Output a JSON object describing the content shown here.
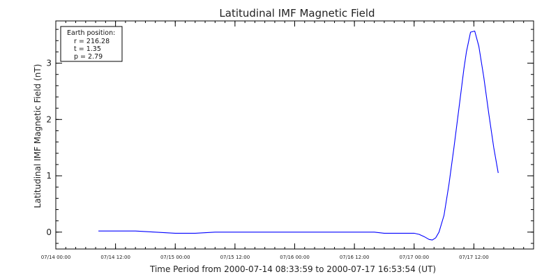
{
  "chart_data": {
    "type": "line",
    "title": "Latitudinal IMF Magnetic Field",
    "xlabel": "Time Period from 2000-07-14 08:33:59 to 2000-07-17 16:53:54 (UT)",
    "ylabel": "Latitudinal IMF Magnetic Field (nT)",
    "x_unit": "time (UT)",
    "xlim": [
      "2000-07-14 00:00",
      "2000-07-18 00:00"
    ],
    "ylim": [
      -0.3,
      3.75
    ],
    "x_ticks": [
      {
        "t": "2000-07-14 00:00",
        "label": "07/14 00:00"
      },
      {
        "t": "2000-07-14 12:00",
        "label": "07/14 12:00"
      },
      {
        "t": "2000-07-15 00:00",
        "label": "07/15 00:00"
      },
      {
        "t": "2000-07-15 12:00",
        "label": "07/15 12:00"
      },
      {
        "t": "2000-07-16 00:00",
        "label": "07/16 00:00"
      },
      {
        "t": "2000-07-16 12:00",
        "label": "07/16 12:00"
      },
      {
        "t": "2000-07-17 00:00",
        "label": "07/17 00:00"
      },
      {
        "t": "2000-07-17 12:00",
        "label": "07/17 12:00"
      }
    ],
    "y_ticks": [
      {
        "v": 0,
        "label": "0"
      },
      {
        "v": 1,
        "label": "1"
      },
      {
        "v": 2,
        "label": "2"
      },
      {
        "v": 3,
        "label": "3"
      }
    ],
    "grid": false,
    "legend": {
      "placement": "top-left",
      "lines": [
        "Earth position:",
        "r = 216.28",
        "t = 1.35",
        "p = 2.79"
      ]
    },
    "series": [
      {
        "color": "#0000ff",
        "points": [
          [
            "2000-07-14 08:34",
            0.02
          ],
          [
            "2000-07-14 12:00",
            0.02
          ],
          [
            "2000-07-14 16:00",
            0.02
          ],
          [
            "2000-07-14 20:00",
            0.0
          ],
          [
            "2000-07-15 00:00",
            -0.02
          ],
          [
            "2000-07-15 04:00",
            -0.02
          ],
          [
            "2000-07-15 08:00",
            0.0
          ],
          [
            "2000-07-15 12:00",
            0.0
          ],
          [
            "2000-07-15 18:00",
            0.0
          ],
          [
            "2000-07-16 00:00",
            0.0
          ],
          [
            "2000-07-16 06:00",
            0.0
          ],
          [
            "2000-07-16 12:00",
            0.0
          ],
          [
            "2000-07-16 16:00",
            0.0
          ],
          [
            "2000-07-16 18:00",
            -0.02
          ],
          [
            "2000-07-17 00:00",
            -0.02
          ],
          [
            "2000-07-17 01:00",
            -0.04
          ],
          [
            "2000-07-17 02:00",
            -0.08
          ],
          [
            "2000-07-17 03:00",
            -0.13
          ],
          [
            "2000-07-17 03:40",
            -0.14
          ],
          [
            "2000-07-17 04:20",
            -0.1
          ],
          [
            "2000-07-17 05:00",
            0.0
          ],
          [
            "2000-07-17 06:00",
            0.3
          ],
          [
            "2000-07-17 07:00",
            0.85
          ],
          [
            "2000-07-17 08:00",
            1.5
          ],
          [
            "2000-07-17 09:00",
            2.2
          ],
          [
            "2000-07-17 10:00",
            2.9
          ],
          [
            "2000-07-17 10:30",
            3.2
          ],
          [
            "2000-07-17 11:20",
            3.55
          ],
          [
            "2000-07-17 12:10",
            3.57
          ],
          [
            "2000-07-17 13:00",
            3.3
          ],
          [
            "2000-07-17 14:00",
            2.75
          ],
          [
            "2000-07-17 15:00",
            2.1
          ],
          [
            "2000-07-17 16:00",
            1.5
          ],
          [
            "2000-07-17 16:54",
            1.05
          ]
        ]
      }
    ]
  }
}
